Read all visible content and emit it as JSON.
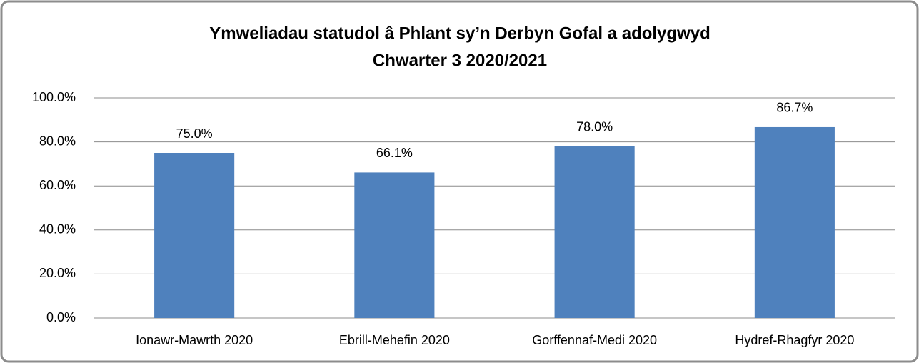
{
  "chart_data": {
    "type": "bar",
    "title": [
      "Ymweliadau statudol â Phlant sy’n Derbyn Gofal a adolygwyd",
      "Chwarter 3 2020/2021"
    ],
    "categories": [
      "Ionawr-Mawrth 2020",
      "Ebrill-Mehefin 2020",
      "Gorffennaf-Medi 2020",
      "Hydref-Rhagfyr 2020"
    ],
    "values": [
      75.0,
      66.1,
      78.0,
      86.7
    ],
    "value_labels": [
      "75.0%",
      "66.1%",
      "78.0%",
      "86.7%"
    ],
    "color": "#4f81bd",
    "ylim": [
      0,
      100
    ],
    "yticks": [
      {
        "value": 0,
        "label": "0.0%"
      },
      {
        "value": 20,
        "label": "20.0%"
      },
      {
        "value": 40,
        "label": "40.0%"
      },
      {
        "value": 60,
        "label": "60.0%"
      },
      {
        "value": 80,
        "label": "80.0%"
      },
      {
        "value": 100,
        "label": "100.0%"
      }
    ],
    "grid": true
  }
}
